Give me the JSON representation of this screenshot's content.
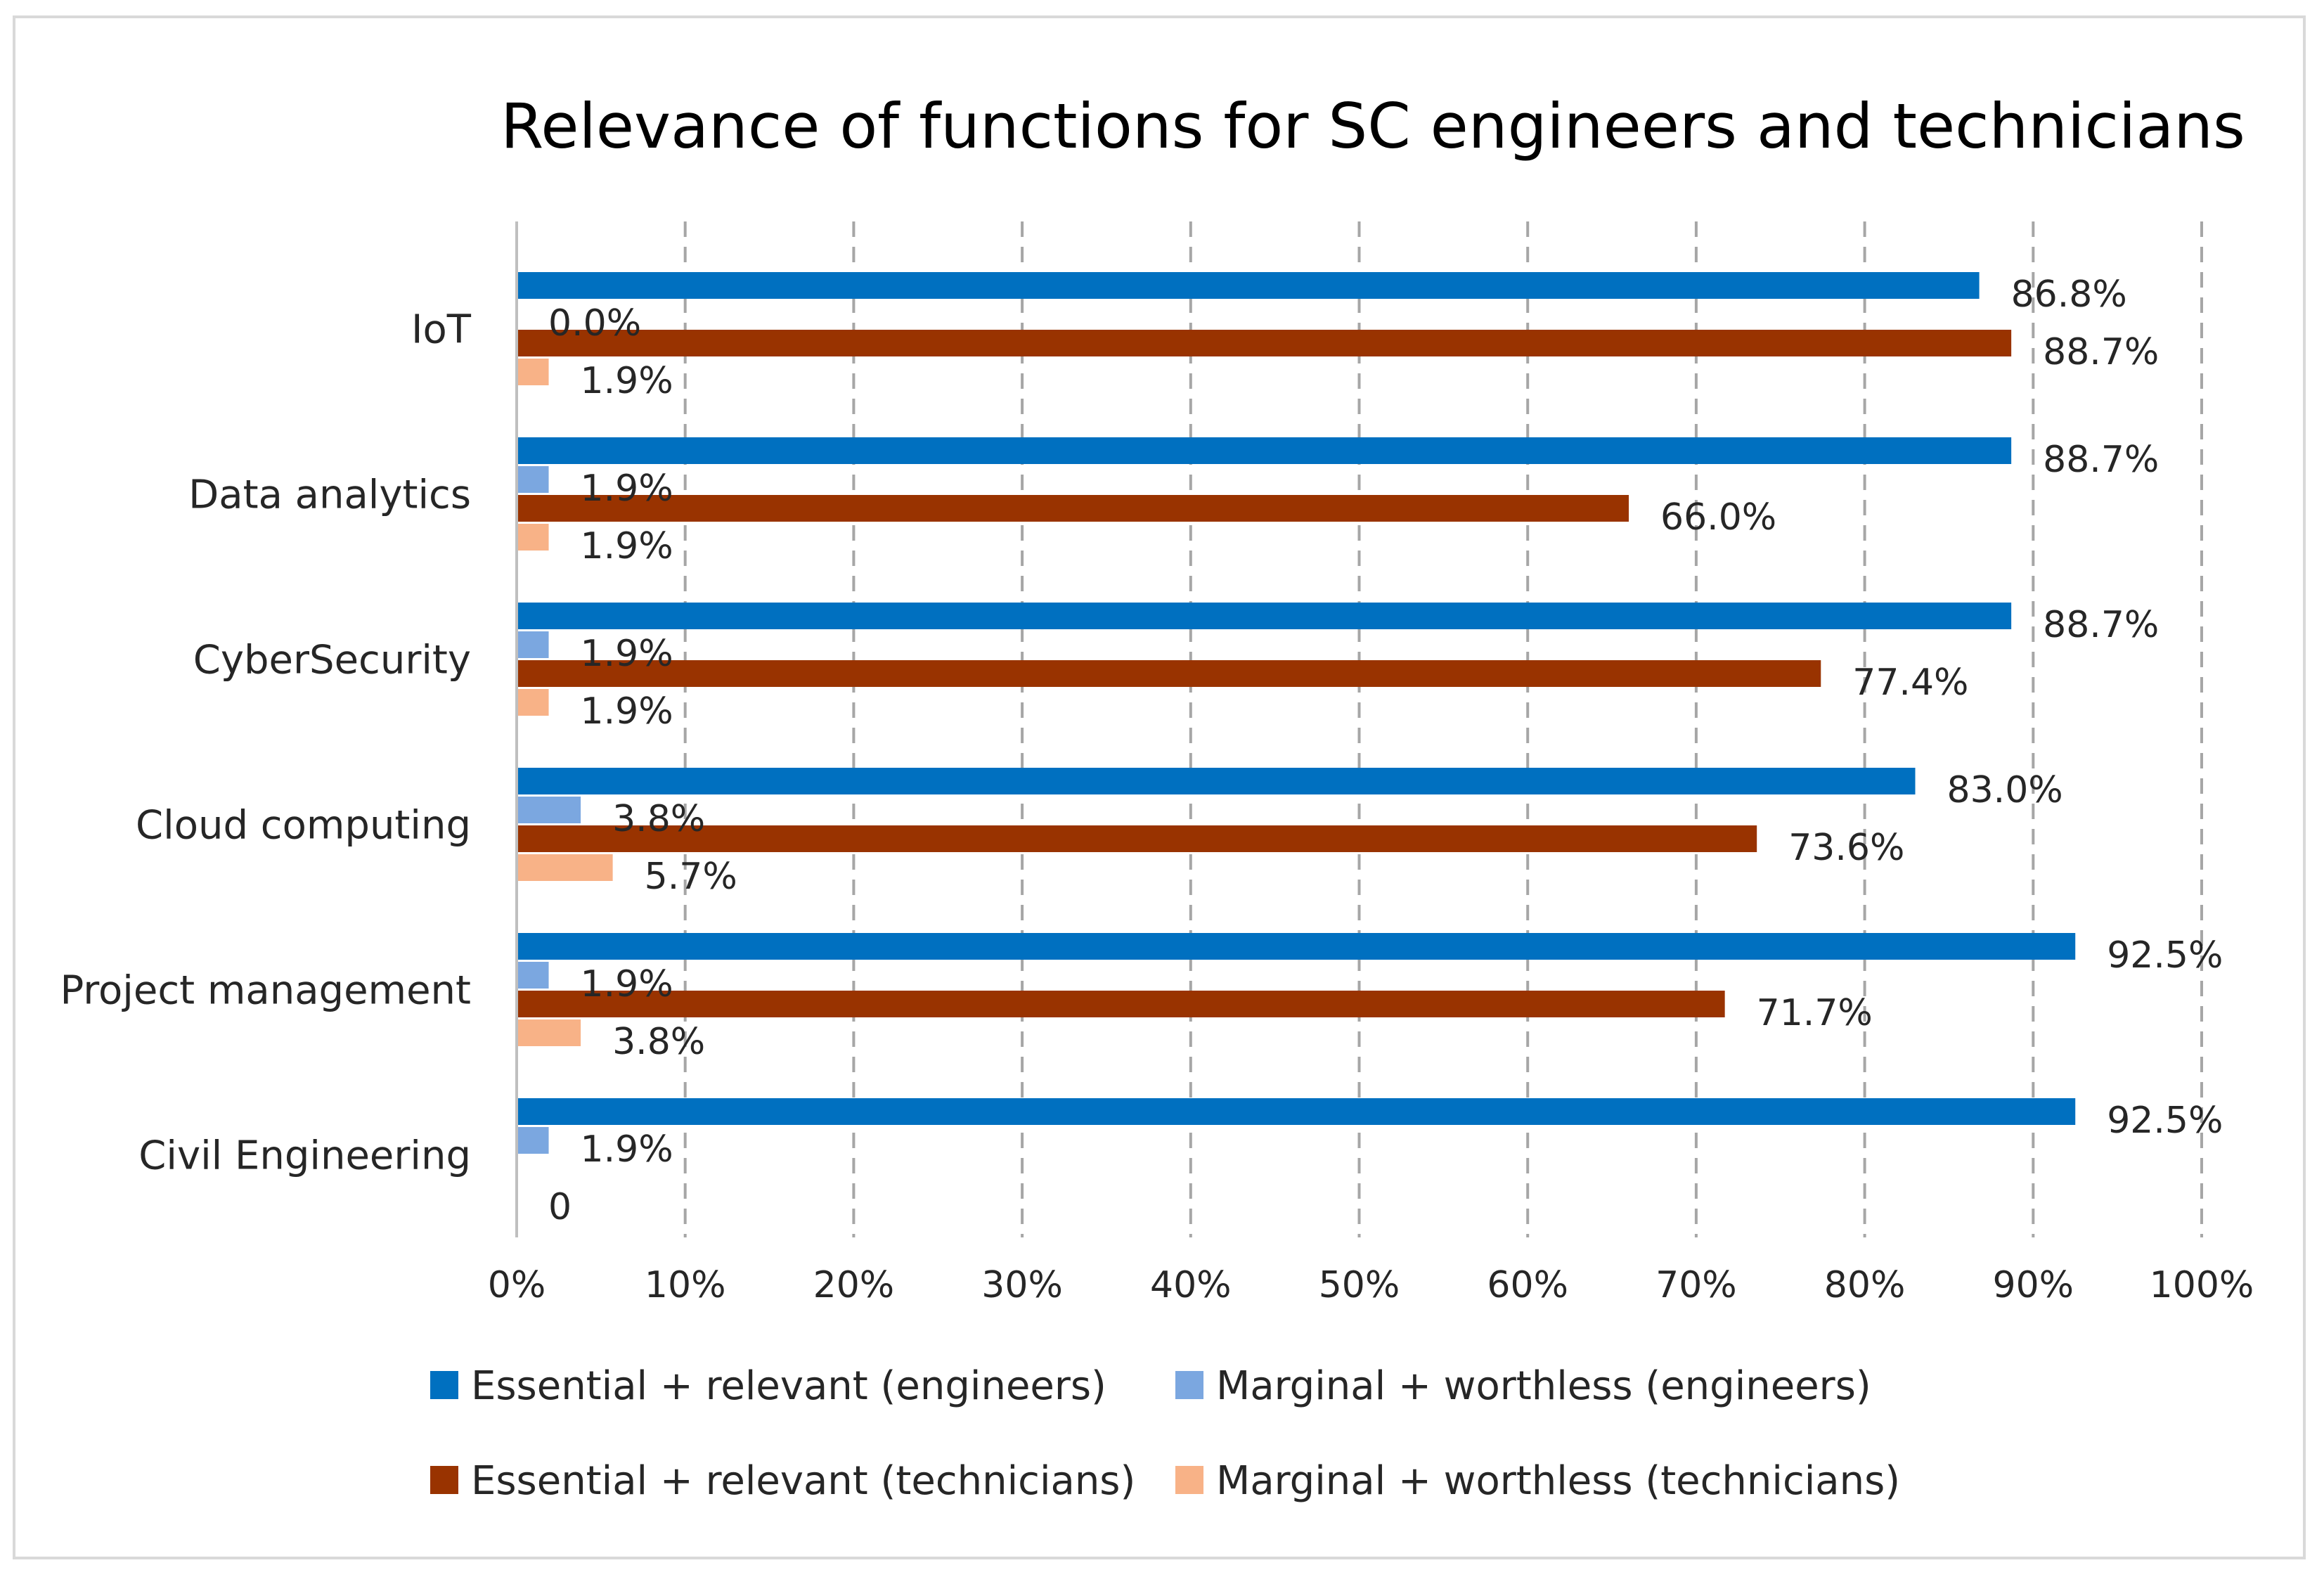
{
  "chart_data": {
    "type": "bar",
    "orientation": "horizontal",
    "title": "Relevance of functions for SC engineers and technicians",
    "categories": [
      "IoT",
      "Data analytics",
      "CyberSecurity",
      "Cloud computing",
      "Project management",
      "Civil Engineering"
    ],
    "xlim": [
      0,
      100
    ],
    "x_ticks": [
      "0%",
      "10%",
      "20%",
      "30%",
      "40%",
      "50%",
      "60%",
      "70%",
      "80%",
      "90%",
      "100%"
    ],
    "grid": "vertical dashed",
    "legend_position": "bottom",
    "series": [
      {
        "name": "Essential + relevant (engineers)",
        "color": "#0070c0",
        "values": [
          86.8,
          88.7,
          88.7,
          83.0,
          92.5,
          92.5
        ],
        "labels": [
          "86.8%",
          "88.7%",
          "88.7%",
          "83.0%",
          "92.5%",
          "92.5%"
        ]
      },
      {
        "name": "Marginal + worthless (engineers)",
        "color": "#7ba7e0",
        "values": [
          0.0,
          1.9,
          1.9,
          3.8,
          1.9,
          1.9
        ],
        "labels": [
          "0.0%",
          "1.9%",
          "1.9%",
          "3.8%",
          "1.9%",
          "1.9%"
        ]
      },
      {
        "name": "Essential + relevant (technicians)",
        "color": "#993300",
        "values": [
          88.7,
          66.0,
          77.4,
          73.6,
          71.7,
          0
        ],
        "labels": [
          "88.7%",
          "66.0%",
          "77.4%",
          "73.6%",
          "71.7%",
          ""
        ]
      },
      {
        "name": "Marginal + worthless (technicians)",
        "color": "#f8b287",
        "values": [
          1.9,
          1.9,
          1.9,
          5.7,
          3.8,
          0
        ],
        "labels": [
          "1.9%",
          "1.9%",
          "1.9%",
          "5.7%",
          "3.8%",
          "0"
        ]
      }
    ]
  }
}
